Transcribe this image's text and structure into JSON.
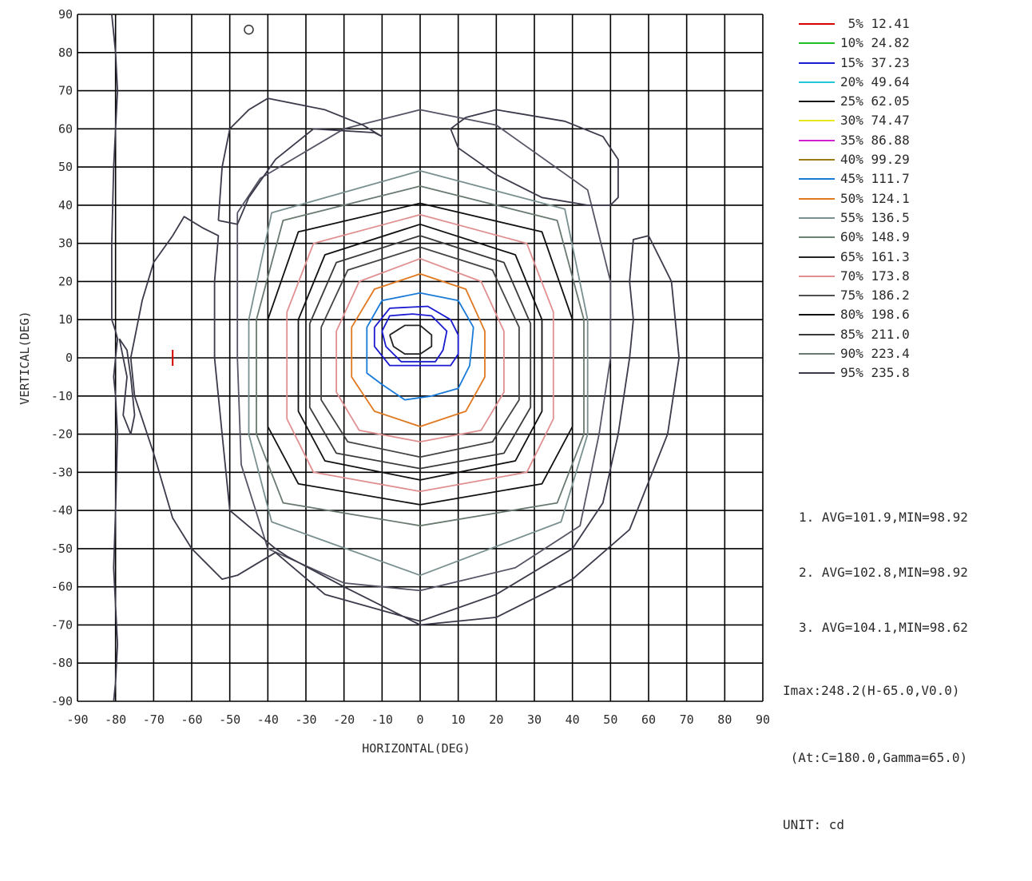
{
  "chart_data": {
    "type": "contour",
    "xlabel": "HORIZONTAL(DEG)",
    "ylabel": "VERTICAL(DEG)",
    "xlim": [
      -90,
      90
    ],
    "ylim": [
      -90,
      90
    ],
    "x_ticks": [
      -90,
      -80,
      -70,
      -60,
      -50,
      -40,
      -30,
      -20,
      -10,
      0,
      10,
      20,
      30,
      40,
      50,
      60,
      70,
      80,
      90
    ],
    "y_ticks": [
      90,
      80,
      70,
      60,
      50,
      40,
      30,
      20,
      10,
      0,
      -10,
      -20,
      -30,
      -40,
      -50,
      -60,
      -70,
      -80,
      -90
    ],
    "grid": true,
    "legend_position": "right",
    "levels": [
      {
        "percent": "5%",
        "value": "12.41",
        "color": "#d40000"
      },
      {
        "percent": "10%",
        "value": "24.82",
        "color": "#20c020"
      },
      {
        "percent": "15%",
        "value": "37.23",
        "color": "#1a1ad0"
      },
      {
        "percent": "20%",
        "value": "49.64",
        "color": "#20c8d8"
      },
      {
        "percent": "25%",
        "value": "62.05",
        "color": "#111111"
      },
      {
        "percent": "30%",
        "value": "74.47",
        "color": "#e8e820"
      },
      {
        "percent": "35%",
        "value": "86.88",
        "color": "#d020d0"
      },
      {
        "percent": "40%",
        "value": "99.29",
        "color": "#9a7d10"
      },
      {
        "percent": "45%",
        "value": "111.7",
        "color": "#1a7ad8"
      },
      {
        "percent": "50%",
        "value": "124.1",
        "color": "#e07820"
      },
      {
        "percent": "55%",
        "value": "136.5",
        "color": "#7a9090"
      },
      {
        "percent": "60%",
        "value": "148.9",
        "color": "#6a8070"
      },
      {
        "percent": "65%",
        "value": "161.3",
        "color": "#222222"
      },
      {
        "percent": "70%",
        "value": "173.8",
        "color": "#e09090"
      },
      {
        "percent": "75%",
        "value": "186.2",
        "color": "#505050"
      },
      {
        "percent": "80%",
        "value": "198.6",
        "color": "#111111"
      },
      {
        "percent": "85%",
        "value": "211.0",
        "color": "#3a3a3a"
      },
      {
        "percent": "90%",
        "value": "223.4",
        "color": "#6a7a70"
      },
      {
        "percent": "95%",
        "value": "235.8",
        "color": "#3a3a4a"
      }
    ],
    "stats": [
      "1. AVG=101.9,MIN=98.92",
      "2. AVG=102.8,MIN=98.92",
      "3. AVG=104.1,MIN=98.62"
    ],
    "imax_lines": [
      "Imax:248.2(H-65.0,V0.0)",
      " (At:C=180.0,Gamma=65.0)",
      "UNIT: cd"
    ],
    "contours": [
      {
        "stroke": "#222222",
        "points": [
          [
            -8,
            6
          ],
          [
            -4,
            8.5
          ],
          [
            0,
            8.5
          ],
          [
            3,
            6
          ],
          [
            3,
            3
          ],
          [
            0,
            1
          ],
          [
            -4,
            1
          ],
          [
            -7,
            3
          ],
          [
            -8,
            6
          ]
        ]
      },
      {
        "stroke": "#1a1ad0",
        "points": [
          [
            -10,
            7
          ],
          [
            -8,
            11
          ],
          [
            -2,
            11.5
          ],
          [
            3,
            11
          ],
          [
            7,
            7
          ],
          [
            6,
            2
          ],
          [
            4,
            -1
          ],
          [
            -5,
            -1
          ],
          [
            -9,
            3
          ],
          [
            -10,
            7
          ]
        ]
      },
      {
        "stroke": "#1a1ad0",
        "points": [
          [
            -12,
            8
          ],
          [
            -8,
            13
          ],
          [
            2,
            13.5
          ],
          [
            8,
            10
          ],
          [
            10,
            6
          ],
          [
            10,
            1
          ],
          [
            8,
            -2
          ],
          [
            5,
            -2
          ],
          [
            0,
            -2
          ],
          [
            -8,
            -2
          ],
          [
            -12,
            3
          ],
          [
            -12,
            8
          ]
        ]
      },
      {
        "stroke": "#1a7ad8",
        "points": [
          [
            -14,
            8
          ],
          [
            -10,
            15
          ],
          [
            0,
            17
          ],
          [
            10,
            15
          ],
          [
            14,
            8
          ],
          [
            13,
            -2
          ],
          [
            10,
            -8
          ],
          [
            3,
            -10
          ],
          [
            -4,
            -11
          ],
          [
            -10,
            -7
          ],
          [
            -14,
            -4
          ],
          [
            -14,
            4
          ],
          [
            -14,
            8
          ]
        ]
      },
      {
        "stroke": "#e07820",
        "points": [
          [
            -18,
            8
          ],
          [
            -12,
            18
          ],
          [
            0,
            22
          ],
          [
            12,
            18
          ],
          [
            17,
            7
          ],
          [
            17,
            -5
          ],
          [
            12,
            -14
          ],
          [
            0,
            -18
          ],
          [
            -12,
            -14
          ],
          [
            -18,
            -5
          ],
          [
            -18,
            8
          ]
        ]
      },
      {
        "stroke": "#e09090",
        "points": [
          [
            -22,
            7
          ],
          [
            -16,
            20
          ],
          [
            0,
            26
          ],
          [
            16,
            20
          ],
          [
            22,
            7
          ],
          [
            22,
            -9
          ],
          [
            16,
            -19
          ],
          [
            0,
            -22
          ],
          [
            -16,
            -19
          ],
          [
            -22,
            -9
          ],
          [
            -22,
            7
          ]
        ]
      },
      {
        "stroke": "#444444",
        "points": [
          [
            -26,
            8
          ],
          [
            -19,
            23
          ],
          [
            0,
            29
          ],
          [
            19,
            23
          ],
          [
            26,
            8
          ],
          [
            26,
            -11
          ],
          [
            19,
            -22
          ],
          [
            0,
            -26
          ],
          [
            -19,
            -22
          ],
          [
            -26,
            -11
          ],
          [
            -26,
            8
          ]
        ]
      },
      {
        "stroke": "#3a3a3a",
        "points": [
          [
            -29,
            9
          ],
          [
            -22,
            25
          ],
          [
            0,
            32
          ],
          [
            22,
            25
          ],
          [
            29,
            9
          ],
          [
            29,
            -13
          ],
          [
            22,
            -25
          ],
          [
            0,
            -29
          ],
          [
            -22,
            -25
          ],
          [
            -29,
            -13
          ],
          [
            -29,
            9
          ]
        ]
      },
      {
        "stroke": "#111111",
        "points": [
          [
            -32,
            10
          ],
          [
            -25,
            27
          ],
          [
            0,
            35
          ],
          [
            25,
            27
          ],
          [
            32,
            10
          ],
          [
            32,
            -14
          ],
          [
            25,
            -27
          ],
          [
            0,
            -32
          ],
          [
            -25,
            -27
          ],
          [
            -32,
            -14
          ],
          [
            -32,
            10
          ]
        ]
      },
      {
        "stroke": "#e09090",
        "points": [
          [
            -35,
            12
          ],
          [
            -28,
            30
          ],
          [
            0,
            37.5
          ],
          [
            28,
            30
          ],
          [
            35,
            12
          ],
          [
            35,
            -16
          ],
          [
            28,
            -30
          ],
          [
            0,
            -35
          ],
          [
            -28,
            -30
          ],
          [
            -35,
            -16
          ],
          [
            -35,
            12
          ]
        ]
      },
      {
        "stroke": "#111111",
        "points": [
          [
            -40,
            10
          ],
          [
            -32,
            33
          ],
          [
            0,
            40.5
          ],
          [
            32,
            33
          ],
          [
            40,
            10
          ],
          [
            40,
            -18
          ],
          [
            32,
            -33
          ],
          [
            0,
            -38.5
          ],
          [
            -32,
            -33
          ],
          [
            -40,
            -18
          ],
          [
            -40,
            10
          ]
        ]
      },
      {
        "stroke": "#6a7a70",
        "points": [
          [
            -43,
            10
          ],
          [
            -36,
            36
          ],
          [
            0,
            45
          ],
          [
            36,
            36
          ],
          [
            43,
            10
          ],
          [
            43,
            -20
          ],
          [
            36,
            -38
          ],
          [
            0,
            -44
          ],
          [
            -36,
            -38
          ],
          [
            -43,
            -20
          ],
          [
            -43,
            10
          ]
        ]
      },
      {
        "stroke": "#7a9090",
        "points": [
          [
            -45,
            10
          ],
          [
            -39,
            38
          ],
          [
            0,
            49
          ],
          [
            38,
            39
          ],
          [
            44,
            10
          ],
          [
            44,
            -20
          ],
          [
            37,
            -43
          ],
          [
            0,
            -57
          ],
          [
            -39,
            -43
          ],
          [
            -45,
            -20
          ],
          [
            -45,
            10
          ]
        ]
      },
      {
        "stroke": "#555566",
        "points": [
          [
            -48,
            38
          ],
          [
            -42,
            47
          ],
          [
            -20,
            60
          ],
          [
            0,
            65
          ],
          [
            20,
            61
          ],
          [
            44,
            44
          ],
          [
            50,
            20
          ],
          [
            50,
            0
          ],
          [
            47,
            -20
          ],
          [
            42,
            -44
          ],
          [
            25,
            -55
          ],
          [
            0,
            -61
          ],
          [
            -20,
            -59
          ],
          [
            -40,
            -50
          ],
          [
            -47,
            -28
          ],
          [
            -48,
            0
          ],
          [
            -48,
            20
          ],
          [
            -48,
            38
          ]
        ]
      },
      {
        "stroke": "#3a3a4a",
        "points": [
          [
            -53,
            36
          ],
          [
            -48,
            35
          ],
          [
            -45,
            42
          ],
          [
            -38,
            52
          ],
          [
            -28,
            60
          ],
          [
            -12,
            59
          ],
          [
            -10,
            58
          ],
          [
            -15,
            61
          ],
          [
            -25,
            65
          ],
          [
            -40,
            68
          ],
          [
            -45,
            65
          ],
          [
            -50,
            60
          ],
          [
            -52,
            50
          ],
          [
            -53,
            36
          ]
        ]
      },
      {
        "stroke": "#3a3a4a",
        "points": [
          [
            12,
            63
          ],
          [
            20,
            65
          ],
          [
            38,
            62
          ],
          [
            48,
            58
          ],
          [
            52,
            52
          ],
          [
            52,
            42
          ],
          [
            50,
            40
          ],
          [
            44,
            40
          ],
          [
            32,
            42
          ],
          [
            20,
            48
          ],
          [
            10,
            55
          ],
          [
            8,
            60
          ],
          [
            12,
            63
          ]
        ]
      },
      {
        "stroke": "#3a3a4a",
        "points": [
          [
            -65,
            32
          ],
          [
            -62,
            37
          ],
          [
            -57,
            34
          ],
          [
            -55,
            33
          ],
          [
            -53,
            32
          ],
          [
            -54,
            20
          ],
          [
            -54,
            0
          ],
          [
            -52,
            -20
          ],
          [
            -50,
            -40
          ],
          [
            -38,
            -50
          ],
          [
            -35,
            -52
          ],
          [
            -20,
            -60
          ],
          [
            0,
            -70
          ],
          [
            20,
            -68
          ],
          [
            40,
            -58
          ],
          [
            55,
            -45
          ],
          [
            65,
            -20
          ],
          [
            68,
            0
          ],
          [
            66,
            20
          ],
          [
            60,
            32
          ],
          [
            56,
            31
          ],
          [
            55,
            20
          ],
          [
            56,
            10
          ],
          [
            55,
            0
          ],
          [
            52,
            -20
          ],
          [
            48,
            -38
          ],
          [
            40,
            -50
          ],
          [
            20,
            -62
          ],
          [
            0,
            -69
          ],
          [
            -25,
            -62
          ],
          [
            -38,
            -51
          ],
          [
            -48,
            -57
          ],
          [
            -52,
            -58
          ],
          [
            -60,
            -50
          ],
          [
            -65,
            -42
          ],
          [
            -70,
            -25
          ],
          [
            -75,
            -10
          ],
          [
            -76,
            0
          ],
          [
            -75,
            5
          ],
          [
            -73,
            15
          ],
          [
            -70,
            25
          ],
          [
            -65,
            32
          ]
        ]
      },
      {
        "stroke": "#3a3a4a",
        "points": [
          [
            -81,
            90
          ],
          [
            -80,
            80
          ],
          [
            -79.5,
            70
          ],
          [
            -80,
            60
          ],
          [
            -80.5,
            50
          ],
          [
            -81,
            30
          ],
          [
            -81,
            10
          ],
          [
            -80,
            7
          ],
          [
            -79.5,
            5
          ],
          [
            -80,
            0
          ],
          [
            -80.5,
            -5
          ],
          [
            -80,
            -10
          ],
          [
            -79.5,
            -20
          ],
          [
            -80,
            -40
          ],
          [
            -80.5,
            -55
          ],
          [
            -80,
            -65
          ],
          [
            -79.5,
            -75
          ],
          [
            -80,
            -85
          ],
          [
            -80.5,
            -90
          ]
        ]
      },
      {
        "stroke": "#3a3a4a",
        "points": [
          [
            -79,
            5
          ],
          [
            -78,
            0
          ],
          [
            -77,
            -5
          ],
          [
            -78,
            -15
          ],
          [
            -76,
            -20
          ],
          [
            -75,
            -15
          ],
          [
            -76,
            -5
          ],
          [
            -77,
            2
          ],
          [
            -79,
            5
          ]
        ]
      }
    ],
    "annotations": [
      {
        "type": "circle",
        "x": -45,
        "y": 86
      },
      {
        "type": "marker",
        "x": -65,
        "y": 0,
        "color": "#d40000"
      }
    ]
  }
}
